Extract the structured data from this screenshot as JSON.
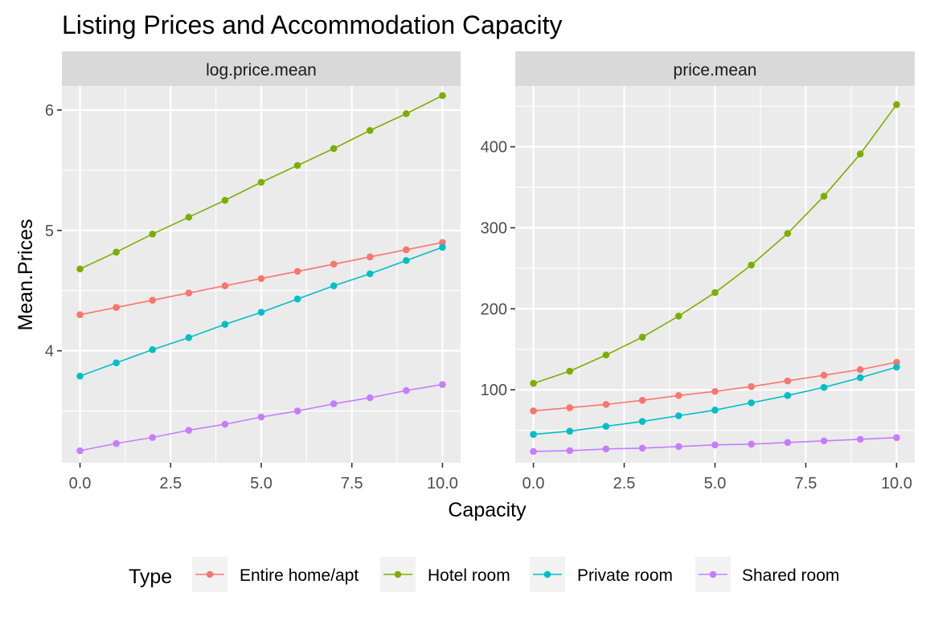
{
  "chart_data": {
    "type": "line",
    "title": "Listing Prices and Accommodation Capacity",
    "xlabel": "Capacity",
    "ylabel": "Mean.Prices",
    "legend": {
      "title": "Type",
      "position": "bottom"
    },
    "grid": true,
    "x": [
      0,
      1,
      2,
      3,
      4,
      5,
      6,
      7,
      8,
      9,
      10
    ],
    "colors": {
      "Entire home/apt": "#F8766D",
      "Hotel room": "#7CAE00",
      "Private room": "#00BFC4",
      "Shared room": "#C77CFF"
    },
    "panels": [
      {
        "strip": "log.price.mean",
        "xlim": [
          -0.5,
          10.5
        ],
        "ylim": [
          3.07,
          6.2
        ],
        "x_ticks": [
          0,
          2.5,
          5,
          7.5,
          10
        ],
        "x_tick_labels": [
          "0.0",
          "2.5",
          "5.0",
          "7.5",
          "10.0"
        ],
        "y_ticks": [
          4,
          5,
          6
        ],
        "y_tick_labels": [
          "4",
          "5",
          "6"
        ],
        "series": [
          {
            "name": "Entire home/apt",
            "values": [
              4.3,
              4.36,
              4.42,
              4.48,
              4.54,
              4.6,
              4.66,
              4.72,
              4.78,
              4.84,
              4.9
            ]
          },
          {
            "name": "Hotel room",
            "values": [
              4.68,
              4.82,
              4.97,
              5.11,
              5.25,
              5.4,
              5.54,
              5.68,
              5.83,
              5.97,
              6.12
            ]
          },
          {
            "name": "Private room",
            "values": [
              3.79,
              3.9,
              4.01,
              4.11,
              4.22,
              4.32,
              4.43,
              4.54,
              4.64,
              4.75,
              4.86
            ]
          },
          {
            "name": "Shared room",
            "values": [
              3.17,
              3.23,
              3.28,
              3.34,
              3.39,
              3.45,
              3.5,
              3.56,
              3.61,
              3.67,
              3.72
            ]
          }
        ]
      },
      {
        "strip": "price.mean",
        "xlim": [
          -0.5,
          10.5
        ],
        "ylim": [
          10,
          475
        ],
        "x_ticks": [
          0,
          2.5,
          5,
          7.5,
          10
        ],
        "x_tick_labels": [
          "0.0",
          "2.5",
          "5.0",
          "7.5",
          "10.0"
        ],
        "y_ticks": [
          100,
          200,
          300,
          400
        ],
        "y_tick_labels": [
          "100",
          "200",
          "300",
          "400"
        ],
        "series": [
          {
            "name": "Entire home/apt",
            "values": [
              74,
              78,
              82,
              87,
              93,
              98,
              104,
              111,
              118,
              125,
              134
            ]
          },
          {
            "name": "Hotel room",
            "values": [
              108,
              123,
              143,
              165,
              191,
              220,
              254,
              293,
              339,
              391,
              452
            ]
          },
          {
            "name": "Private room",
            "values": [
              45,
              49,
              55,
              61,
              68,
              75,
              84,
              93,
              103,
              115,
              128
            ]
          },
          {
            "name": "Shared room",
            "values": [
              24,
              25,
              27,
              28,
              30,
              32,
              33,
              35,
              37,
              39,
              41
            ]
          }
        ]
      }
    ]
  }
}
